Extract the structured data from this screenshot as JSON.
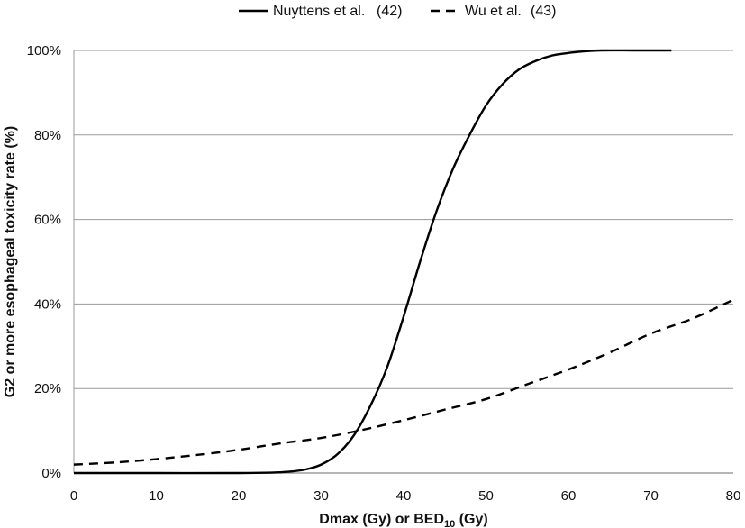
{
  "chart_data": {
    "type": "line",
    "xlabel": "Dmax (Gy) or BED",
    "xlabel_sub": "10",
    "xlabel_suffix": " (Gy)",
    "ylabel": "G2 or more esophageal toxicity rate (%)",
    "xlim": [
      0,
      80
    ],
    "ylim": [
      0,
      100
    ],
    "x_ticks": [
      "0",
      "10",
      "20",
      "30",
      "40",
      "50",
      "60",
      "70",
      "80"
    ],
    "y_ticks": [
      "0%",
      "20%",
      "40%",
      "60%",
      "80%",
      "100%"
    ],
    "grid": "horizontal",
    "legend_position": "top",
    "series": [
      {
        "name": "Nuyttens et al.",
        "ref": "(42)",
        "style": "solid",
        "color": "#000000",
        "x": [
          0,
          10,
          20,
          24,
          26,
          28,
          30,
          32,
          34,
          36,
          38,
          40,
          42,
          44,
          46,
          48,
          50,
          52,
          54,
          56,
          58,
          60,
          62,
          64,
          68,
          72.5
        ],
        "y": [
          0,
          0,
          0,
          0.1,
          0.3,
          0.8,
          2,
          4.5,
          9,
          16,
          25,
          37,
          50,
          62,
          72,
          80,
          87,
          92,
          95.5,
          97.5,
          98.8,
          99.4,
          99.8,
          100,
          100,
          100
        ]
      },
      {
        "name": "Wu et al.",
        "ref": "(43)",
        "style": "dashed",
        "color": "#000000",
        "x": [
          0,
          5,
          10,
          15,
          20,
          25,
          30,
          35,
          40,
          45,
          50,
          55,
          60,
          65,
          70,
          75,
          80
        ],
        "y": [
          2,
          2.5,
          3.3,
          4.3,
          5.5,
          7,
          8.3,
          10.2,
          12.5,
          15,
          17.5,
          21,
          24.5,
          28.5,
          33,
          36.5,
          41
        ]
      }
    ]
  }
}
